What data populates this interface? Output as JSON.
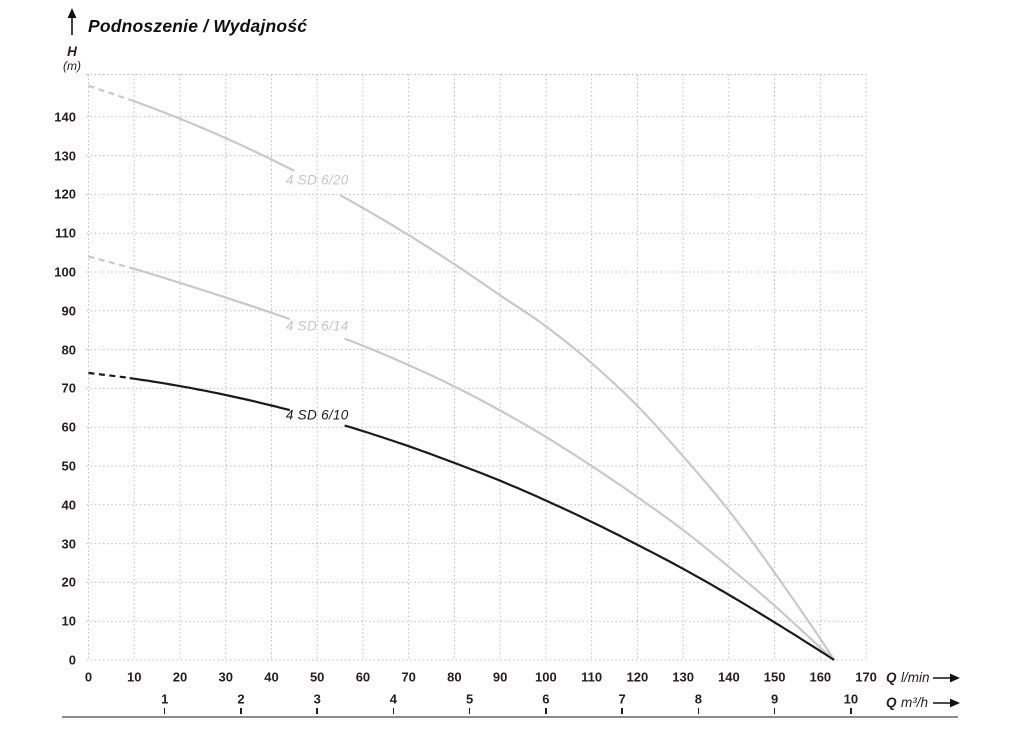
{
  "header": {
    "title": "Podnoszenie / Wydajność"
  },
  "y_axis": {
    "symbol": "H",
    "unit": "(m)",
    "ticks": [
      0,
      10,
      20,
      30,
      40,
      50,
      60,
      70,
      80,
      90,
      100,
      110,
      120,
      130,
      140
    ]
  },
  "x_axis_lmin": {
    "symbol": "Q",
    "unit": "l/min",
    "ticks": [
      0,
      10,
      20,
      30,
      40,
      50,
      60,
      70,
      80,
      90,
      100,
      110,
      120,
      130,
      140,
      150,
      160,
      170
    ]
  },
  "x_axis_m3h": {
    "symbol": "Q",
    "unit": "m³/h",
    "ticks": [
      1,
      2,
      3,
      4,
      5,
      6,
      7,
      8,
      9,
      10
    ]
  },
  "colors": {
    "curve_gray": "#c9c9c9",
    "curve_black": "#1b1b1b",
    "label_gray": "#c5c5c5",
    "label_black": "#1a1a1a",
    "grid": "#bdbdbd",
    "text": "#231f20",
    "baseline_rule": "#8c8c8c"
  },
  "chart_data": {
    "type": "line",
    "title": "Podnoszenie / Wydajność",
    "xlabel": "Q (l/min)",
    "xlabel_secondary": "Q (m³/h)",
    "ylabel": "H (m)",
    "xlim": [
      0,
      170
    ],
    "ylim": [
      0,
      150
    ],
    "grid": "dotted",
    "x": [
      0,
      10,
      20,
      30,
      40,
      50,
      60,
      70,
      80,
      90,
      100,
      110,
      120,
      130,
      140,
      150,
      160,
      163
    ],
    "series": [
      {
        "name": "4 SD 6/20",
        "color_key": "curve_gray",
        "label_color_key": "label_gray",
        "values": [
          148,
          144,
          139.5,
          134.5,
          129,
          123,
          116.5,
          109.5,
          102,
          94,
          86,
          76.5,
          65.5,
          52.5,
          38.5,
          22.5,
          5.5,
          0
        ],
        "dashed_until_lmin": 9,
        "label_gap_lmin": [
          45,
          55
        ],
        "label_at_lmin": 50
      },
      {
        "name": "4 SD 6/14",
        "color_key": "curve_gray",
        "label_color_key": "label_gray",
        "values": [
          104,
          100.8,
          97.2,
          93.4,
          89.5,
          85.4,
          81,
          76,
          70.5,
          64.3,
          57.5,
          50,
          42,
          33.5,
          24,
          14,
          3.2,
          0
        ],
        "dashed_until_lmin": 9,
        "label_gap_lmin": [
          44,
          56
        ],
        "label_at_lmin": 50
      },
      {
        "name": "4 SD 6/10",
        "color_key": "curve_black",
        "label_color_key": "label_black",
        "values": [
          74,
          72.5,
          70.6,
          68.3,
          65.6,
          62.5,
          59,
          55.1,
          50.8,
          46.2,
          41.1,
          35.6,
          29.7,
          23.5,
          16.8,
          9.7,
          2.3,
          0
        ],
        "dashed_until_lmin": 9,
        "label_gap_lmin": [
          44,
          56
        ],
        "label_at_lmin": 50
      }
    ]
  }
}
